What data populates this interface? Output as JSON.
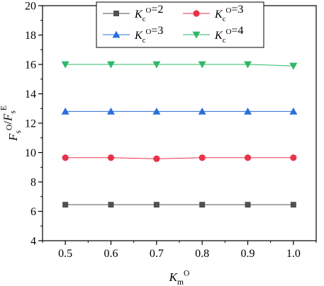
{
  "chart_data": {
    "type": "line",
    "title": "",
    "xlabel": {
      "base": "K",
      "sub": "m",
      "sup": "O"
    },
    "ylabel": {
      "parts": [
        {
          "t": "F",
          "sub": "s",
          "sup": "O"
        },
        {
          "t": "/"
        },
        {
          "t": "F",
          "sub": "s",
          "sup": "E"
        }
      ]
    },
    "xlim": [
      0.45,
      1.05
    ],
    "ylim": [
      4,
      20
    ],
    "xticks": [
      0.5,
      0.6,
      0.7,
      0.8,
      0.9,
      1.0
    ],
    "xtick_labels": [
      "0.5",
      "0.6",
      "0.7",
      "0.8",
      "0.9",
      "1.0"
    ],
    "yticks": [
      4,
      6,
      8,
      10,
      12,
      14,
      16,
      18,
      20
    ],
    "ytick_labels": [
      "4",
      "6",
      "8",
      "10",
      "12",
      "14",
      "16",
      "18",
      "20"
    ],
    "grid": false,
    "legend_position": "top",
    "x": [
      0.5,
      0.6,
      0.7,
      0.8,
      0.9,
      1.0
    ],
    "series": [
      {
        "name": "Kc_O=2",
        "label": {
          "base": "K",
          "sub": "c",
          "sup": "O",
          "rest": "=2"
        },
        "color": "#505050",
        "marker": "square",
        "values": [
          6.45,
          6.45,
          6.45,
          6.45,
          6.45,
          6.45
        ]
      },
      {
        "name": "Kc_O=3 (red)",
        "label": {
          "base": "K",
          "sub": "c",
          "sup": "O",
          "rest": "=3"
        },
        "color": "#e8334a",
        "marker": "circle",
        "values": [
          9.65,
          9.65,
          9.58,
          9.65,
          9.65,
          9.65
        ]
      },
      {
        "name": "Kc_O=3 (blue)",
        "label": {
          "base": "K",
          "sub": "c",
          "sup": "O",
          "rest": "=3"
        },
        "color": "#2a6fdb",
        "marker": "triangle-up",
        "values": [
          12.8,
          12.8,
          12.8,
          12.8,
          12.8,
          12.8
        ]
      },
      {
        "name": "Kc_O=4",
        "label": {
          "base": "K",
          "sub": "c",
          "sup": "O",
          "rest": "=4"
        },
        "color": "#2fb86a",
        "marker": "triangle-down",
        "values": [
          16.0,
          16.0,
          16.0,
          16.0,
          16.0,
          15.9
        ]
      }
    ]
  }
}
